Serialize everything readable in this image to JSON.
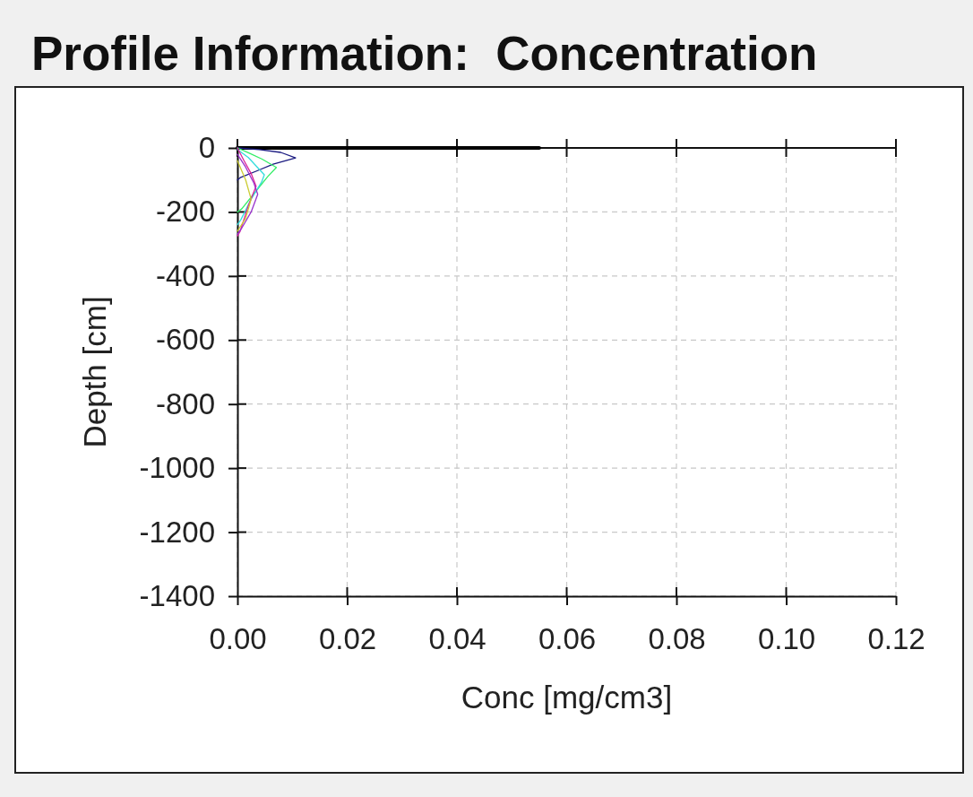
{
  "chart_data": {
    "type": "line",
    "title": "Profile Information:  Concentration",
    "xlabel": "Conc [mg/cm3]",
    "ylabel": "Depth [cm]",
    "xlim": [
      0,
      0.12
    ],
    "xticks": [
      {
        "value": 0,
        "label": "0.00"
      },
      0.02,
      0.04,
      0.06,
      0.08,
      {
        "value": 0.1,
        "label": "0.10"
      },
      0.12
    ],
    "ylim": [
      -1400,
      0
    ],
    "yticks": [
      -1400,
      -1200,
      -1000,
      -800,
      -600,
      -400,
      -200,
      0
    ],
    "grid": true,
    "line_style": "solid",
    "series": [
      {
        "color": "#000000",
        "x": [
          0,
          0.055
        ],
        "values": [
          0,
          0
        ]
      },
      {
        "color": "#1a1a80",
        "x": [
          0,
          0.004,
          0.0079,
          0.0106,
          0.0087,
          0.0065,
          0.0038,
          0.0005,
          0
        ],
        "values": [
          0,
          -5,
          -14,
          -31,
          -40,
          -51,
          -70,
          -93,
          -100
        ]
      },
      {
        "color": "#33ee66",
        "x": [
          0,
          0.002,
          0.0045,
          0.0071,
          0.0055,
          0.0038,
          0.0008,
          0
        ],
        "values": [
          0,
          -15,
          -35,
          -61,
          -90,
          -126,
          -190,
          -200
        ]
      },
      {
        "color": "#33dddd",
        "x": [
          0,
          0.002,
          0.0049,
          0.0044,
          0.0025,
          0.0006,
          0
        ],
        "values": [
          -5,
          -30,
          -84,
          -107,
          -160,
          -225,
          -240
        ]
      },
      {
        "color": "#dd2299",
        "x": [
          0,
          0.0012,
          0.0025,
          0.0034,
          0.002,
          0.0005,
          0
        ],
        "values": [
          0,
          -40,
          -80,
          -120,
          -180,
          -260,
          -275
        ]
      },
      {
        "color": "#9933cc",
        "x": [
          0,
          0.0015,
          0.003,
          0.0037,
          0.0025,
          0.0008,
          0
        ],
        "values": [
          -20,
          -60,
          -110,
          -145,
          -200,
          -250,
          -270
        ]
      },
      {
        "color": "#cccc33",
        "x": [
          0,
          0.0015,
          0.0025,
          0.0015,
          0
        ],
        "values": [
          -40,
          -100,
          -160,
          -220,
          -260
        ]
      }
    ]
  }
}
